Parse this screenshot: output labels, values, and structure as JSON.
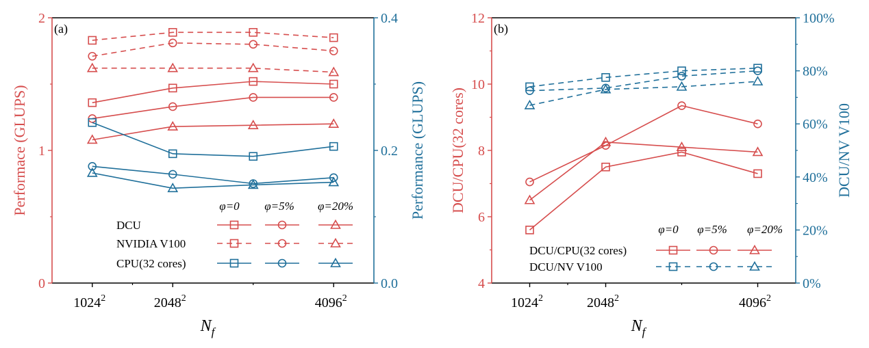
{
  "colors": {
    "red": "#d64d4d",
    "blue": "#1f6f9a",
    "black": "#000000"
  },
  "chart_data": [
    {
      "type": "line",
      "panel_label": "(a)",
      "xlabel": "N",
      "xlabel_sub": "f",
      "x_ticks": [
        {
          "x": 1024,
          "base": "1024",
          "exp": "2"
        },
        {
          "x": 2048,
          "base": "2048",
          "exp": "2"
        },
        {
          "x": 4096,
          "base": "4096",
          "exp": "2"
        }
      ],
      "xlim": [
        512,
        4608
      ],
      "ylabel_left": "Performace (GLUPS)",
      "ylabel_right": "Performance (GLUPS)",
      "ylim_left": [
        0,
        2
      ],
      "ylim_right": [
        0,
        0.4
      ],
      "yticks_left": [
        "0",
        "1",
        "2"
      ],
      "yticks_right": [
        "0.0",
        "0.2",
        "0.4"
      ],
      "legend_headers": [
        "φ=0",
        "φ=5%",
        "φ=20%"
      ],
      "legend_rows": [
        "DCU",
        "NVIDIA V100",
        "CPU(32 cores)"
      ],
      "series": [
        {
          "group": "DCU",
          "phi": "φ=0",
          "axis": "left",
          "color": "red",
          "dash": false,
          "marker": "square",
          "x": [
            1024,
            2048,
            3072,
            4096
          ],
          "y": [
            1.36,
            1.47,
            1.52,
            1.5
          ]
        },
        {
          "group": "DCU",
          "phi": "φ=5%",
          "axis": "left",
          "color": "red",
          "dash": false,
          "marker": "circle",
          "x": [
            1024,
            2048,
            3072,
            4096
          ],
          "y": [
            1.24,
            1.33,
            1.4,
            1.4
          ]
        },
        {
          "group": "DCU",
          "phi": "φ=20%",
          "axis": "left",
          "color": "red",
          "dash": false,
          "marker": "triangle",
          "x": [
            1024,
            2048,
            3072,
            4096
          ],
          "y": [
            1.08,
            1.18,
            1.19,
            1.2
          ]
        },
        {
          "group": "NVIDIA V100",
          "phi": "φ=0",
          "axis": "left",
          "color": "red",
          "dash": true,
          "marker": "square",
          "x": [
            1024,
            2048,
            3072,
            4096
          ],
          "y": [
            1.83,
            1.89,
            1.89,
            1.85
          ]
        },
        {
          "group": "NVIDIA V100",
          "phi": "φ=5%",
          "axis": "left",
          "color": "red",
          "dash": true,
          "marker": "circle",
          "x": [
            1024,
            2048,
            3072,
            4096
          ],
          "y": [
            1.71,
            1.81,
            1.8,
            1.75
          ]
        },
        {
          "group": "NVIDIA V100",
          "phi": "φ=20%",
          "axis": "left",
          "color": "red",
          "dash": true,
          "marker": "triangle",
          "x": [
            1024,
            2048,
            3072,
            4096
          ],
          "y": [
            1.62,
            1.62,
            1.62,
            1.59
          ]
        },
        {
          "group": "CPU(32 cores)",
          "phi": "φ=0",
          "axis": "right",
          "color": "blue",
          "dash": false,
          "marker": "square",
          "x": [
            1024,
            2048,
            3072,
            4096
          ],
          "y": [
            0.242,
            0.195,
            0.191,
            0.206
          ]
        },
        {
          "group": "CPU(32 cores)",
          "phi": "φ=5%",
          "axis": "right",
          "color": "blue",
          "dash": false,
          "marker": "circle",
          "x": [
            1024,
            2048,
            3072,
            4096
          ],
          "y": [
            0.176,
            0.164,
            0.15,
            0.159
          ]
        },
        {
          "group": "CPU(32 cores)",
          "phi": "φ=20%",
          "axis": "right",
          "color": "blue",
          "dash": false,
          "marker": "triangle",
          "x": [
            1024,
            2048,
            3072,
            4096
          ],
          "y": [
            0.166,
            0.143,
            0.148,
            0.152
          ]
        }
      ]
    },
    {
      "type": "line",
      "panel_label": "(b)",
      "xlabel": "N",
      "xlabel_sub": "f",
      "x_ticks": [
        {
          "x": 1024,
          "base": "1024",
          "exp": "2"
        },
        {
          "x": 2048,
          "base": "2048",
          "exp": "2"
        },
        {
          "x": 4096,
          "base": "4096",
          "exp": "2"
        }
      ],
      "xlim": [
        512,
        4608
      ],
      "ylabel_left": "DCU/CPU(32 cores)",
      "ylabel_right": "DCU/NV V100",
      "ylim_left": [
        4,
        12
      ],
      "ylim_right": [
        0,
        100
      ],
      "yticks_left": [
        "4",
        "6",
        "8",
        "10",
        "12"
      ],
      "yticks_right": [
        "0%",
        "20%",
        "40%",
        "60%",
        "80%",
        "100%"
      ],
      "legend_headers": [
        "φ=0",
        "φ=5%",
        "φ=20%"
      ],
      "legend_rows": [
        "DCU/CPU(32 cores)",
        "DCU/NV V100"
      ],
      "series": [
        {
          "group": "DCU/CPU(32 cores)",
          "phi": "φ=0",
          "axis": "left",
          "color": "red",
          "dash": false,
          "marker": "square",
          "x": [
            1024,
            2048,
            3072,
            4096
          ],
          "y": [
            5.6,
            7.5,
            7.95,
            7.3
          ]
        },
        {
          "group": "DCU/CPU(32 cores)",
          "phi": "φ=5%",
          "axis": "left",
          "color": "red",
          "dash": false,
          "marker": "circle",
          "x": [
            1024,
            2048,
            3072,
            4096
          ],
          "y": [
            7.05,
            8.15,
            9.35,
            8.8
          ]
        },
        {
          "group": "DCU/CPU(32 cores)",
          "phi": "φ=20%",
          "axis": "left",
          "color": "red",
          "dash": false,
          "marker": "triangle",
          "x": [
            1024,
            2048,
            3072,
            4096
          ],
          "y": [
            6.5,
            8.25,
            8.1,
            7.95
          ]
        },
        {
          "group": "DCU/NV V100",
          "phi": "φ=0",
          "axis": "right",
          "color": "blue",
          "dash": true,
          "marker": "square",
          "x": [
            1024,
            2048,
            3072,
            4096
          ],
          "y": [
            74,
            77.5,
            80,
            81
          ]
        },
        {
          "group": "DCU/NV V100",
          "phi": "φ=5%",
          "axis": "right",
          "color": "blue",
          "dash": true,
          "marker": "circle",
          "x": [
            1024,
            2048,
            3072,
            4096
          ],
          "y": [
            72.5,
            73.5,
            78,
            80
          ]
        },
        {
          "group": "DCU/NV V100",
          "phi": "φ=20%",
          "axis": "right",
          "color": "blue",
          "dash": true,
          "marker": "triangle",
          "x": [
            1024,
            2048,
            3072,
            4096
          ],
          "y": [
            67,
            73,
            74,
            76
          ]
        }
      ]
    }
  ]
}
